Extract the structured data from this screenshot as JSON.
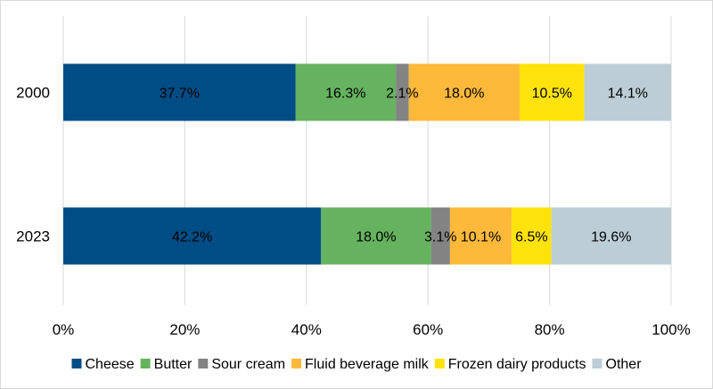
{
  "chart_data": {
    "type": "bar",
    "orientation": "horizontal",
    "stacked": "percent",
    "categories": [
      "2000",
      "2023"
    ],
    "series": [
      {
        "name": "Cheese",
        "color": "#004c85",
        "values": [
          37.7,
          42.2
        ],
        "labels": [
          "37.7%",
          "42.2%"
        ]
      },
      {
        "name": "Butter",
        "color": "#66b35f",
        "values": [
          16.3,
          18.0
        ],
        "labels": [
          "16.3%",
          "18.0%"
        ]
      },
      {
        "name": "Sour cream",
        "color": "#838383",
        "values": [
          2.1,
          3.1
        ],
        "labels": [
          "2.1%",
          "3.1%"
        ]
      },
      {
        "name": "Fluid beverage milk",
        "color": "#fdb93a",
        "values": [
          18.0,
          10.1
        ],
        "labels": [
          "18.0%",
          "10.1%"
        ]
      },
      {
        "name": "Frozen dairy products",
        "color": "#ffe30a",
        "values": [
          10.5,
          6.5
        ],
        "labels": [
          "10.5%",
          "6.5%"
        ]
      },
      {
        "name": "Other",
        "color": "#bccdd6",
        "values": [
          14.1,
          19.6
        ],
        "labels": [
          "14.1%",
          "19.6%"
        ]
      }
    ],
    "xlim": [
      0,
      100
    ],
    "x_ticks": [
      "0%",
      "20%",
      "40%",
      "60%",
      "80%",
      "100%"
    ],
    "grid": "vertical",
    "legend": "bottom",
    "title": "",
    "xlabel": "",
    "ylabel": ""
  }
}
